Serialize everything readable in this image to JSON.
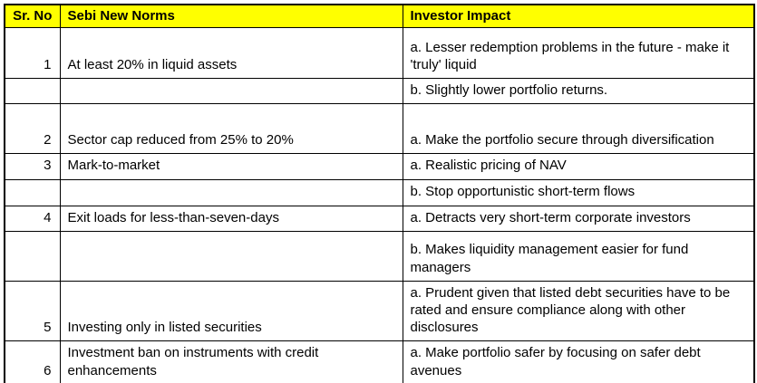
{
  "table": {
    "header_bg": "#FFFF00",
    "border_color": "#000000",
    "columns": [
      {
        "label": "Sr. No"
      },
      {
        "label": "Sebi New Norms"
      },
      {
        "label": "Investor Impact"
      }
    ],
    "rows": [
      {
        "sr": "1",
        "norm": "At least 20% in liquid assets",
        "impact": "a. Lesser redemption problems in the future - make it 'truly' liquid"
      },
      {
        "sr": "",
        "norm": "",
        "impact": "b. Slightly lower portfolio returns."
      },
      {
        "sr": "2",
        "norm": "Sector cap reduced from 25% to 20%",
        "impact": "a. Make the portfolio secure through diversification"
      },
      {
        "sr": "3",
        "norm": "Mark-to-market",
        "impact": "a. Realistic pricing of NAV"
      },
      {
        "sr": "",
        "norm": "",
        "impact": "b. Stop opportunistic short-term flows"
      },
      {
        "sr": "4",
        "norm": "Exit loads for less-than-seven-days",
        "impact": "a. Detracts very short-term corporate investors"
      },
      {
        "sr": "",
        "norm": "",
        "impact": "b. Makes liquidity management easier for fund managers"
      },
      {
        "sr": "5",
        "norm": "Investing only in listed securities",
        "impact": "a. Prudent given that listed debt securities have to be rated and ensure compliance along with other disclosures"
      },
      {
        "sr": "6",
        "norm": "Investment ban on instruments with credit enhancements",
        "impact": "a. Make portfolio safer by focusing on safer debt avenues"
      }
    ]
  }
}
